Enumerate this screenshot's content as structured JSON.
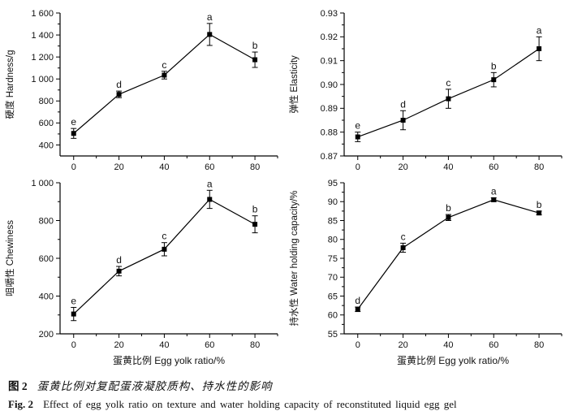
{
  "figure": {
    "caption_cn_label": "图 2",
    "caption_cn": "蛋黄比例对复配蛋液凝胶质构、持水性的影响",
    "caption_en_label": "Fig. 2",
    "caption_en": "Effect of egg yolk ratio on texture and water holding capacity of reconstituted liquid egg gel"
  },
  "chart_data": [
    {
      "id": "hardness",
      "type": "line",
      "title": "",
      "ylabel": "硬度 Hardness/g",
      "xlabel": "",
      "x": [
        0,
        20,
        40,
        60,
        80
      ],
      "values": [
        505,
        860,
        1035,
        1405,
        1175
      ],
      "errors": [
        45,
        30,
        35,
        100,
        70
      ],
      "point_labels": [
        "e",
        "d",
        "c",
        "a",
        "b"
      ],
      "xlim": [
        -6,
        90
      ],
      "ylim": [
        300,
        1600
      ],
      "xticks": [
        0,
        20,
        40,
        60,
        80
      ],
      "yticks": [
        400,
        600,
        800,
        1000,
        1200,
        1400,
        1600
      ],
      "ytick_labels": [
        "400",
        "600",
        "800",
        "1 000",
        "1 200",
        "1 400",
        "1 600"
      ],
      "marker": "filled-square",
      "line_color": "#000000",
      "error_bars": true,
      "grid": false
    },
    {
      "id": "elasticity",
      "type": "line",
      "title": "",
      "ylabel": "弹性 Elasticity",
      "xlabel": "",
      "x": [
        0,
        20,
        40,
        60,
        80
      ],
      "values": [
        0.878,
        0.885,
        0.894,
        0.902,
        0.915
      ],
      "errors": [
        0.002,
        0.004,
        0.004,
        0.003,
        0.005
      ],
      "point_labels": [
        "e",
        "d",
        "c",
        "b",
        "a"
      ],
      "xlim": [
        -6,
        90
      ],
      "ylim": [
        0.87,
        0.93
      ],
      "xticks": [
        0,
        20,
        40,
        60,
        80
      ],
      "yticks": [
        0.87,
        0.88,
        0.89,
        0.9,
        0.91,
        0.92,
        0.93
      ],
      "ytick_labels": [
        "0.87",
        "0.88",
        "0.89",
        "0.90",
        "0.91",
        "0.92",
        "0.93"
      ],
      "marker": "filled-square",
      "line_color": "#000000",
      "error_bars": true,
      "grid": false
    },
    {
      "id": "chewiness",
      "type": "line",
      "title": "",
      "ylabel": "咀嚼性 Chewiness",
      "xlabel": "蛋黄比例 Egg yolk ratio/%",
      "x": [
        0,
        20,
        40,
        60,
        80
      ],
      "values": [
        305,
        532,
        648,
        912,
        780
      ],
      "errors": [
        35,
        25,
        35,
        48,
        45
      ],
      "point_labels": [
        "e",
        "d",
        "c",
        "a",
        "b"
      ],
      "xlim": [
        -6,
        90
      ],
      "ylim": [
        200,
        1000
      ],
      "xticks": [
        0,
        20,
        40,
        60,
        80
      ],
      "yticks": [
        200,
        400,
        600,
        800,
        1000
      ],
      "ytick_labels": [
        "200",
        "400",
        "600",
        "800",
        "1 000"
      ],
      "marker": "filled-square",
      "line_color": "#000000",
      "error_bars": true,
      "grid": false
    },
    {
      "id": "water-holding-capacity",
      "type": "line",
      "title": "",
      "ylabel": "持水性 Water holding capacity/%",
      "xlabel": "蛋黄比例 Egg yolk ratio/%",
      "x": [
        0,
        20,
        40,
        60,
        80
      ],
      "values": [
        61.5,
        77.8,
        85.8,
        90.5,
        87.0
      ],
      "errors": [
        0.6,
        1.2,
        0.8,
        0.5,
        0.5
      ],
      "point_labels": [
        "d",
        "c",
        "b",
        "a",
        "b"
      ],
      "xlim": [
        -6,
        90
      ],
      "ylim": [
        55,
        95
      ],
      "xticks": [
        0,
        20,
        40,
        60,
        80
      ],
      "yticks": [
        55,
        60,
        65,
        70,
        75,
        80,
        85,
        90,
        95
      ],
      "ytick_labels": [
        "55",
        "60",
        "65",
        "70",
        "75",
        "80",
        "85",
        "90",
        "95"
      ],
      "marker": "filled-square",
      "line_color": "#000000",
      "error_bars": true,
      "grid": false
    }
  ]
}
